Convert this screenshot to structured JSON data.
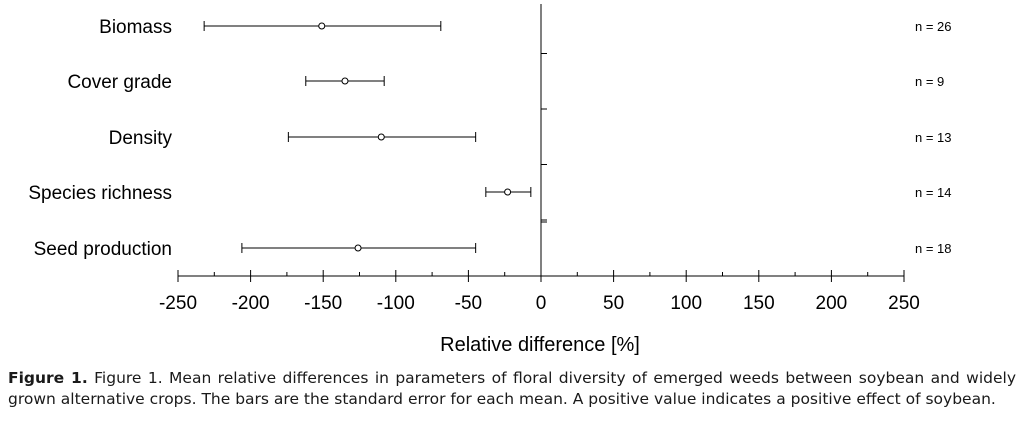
{
  "chart_data": {
    "type": "scatter",
    "subtype": "forest-plot-error-bars",
    "categories": [
      "Biomass",
      "Cover grade",
      "Density",
      "Species richness",
      "Seed production"
    ],
    "means": [
      -151,
      -135,
      -110,
      -23,
      -126
    ],
    "errors_low": [
      -232,
      -162,
      -174,
      -38,
      -206
    ],
    "errors_high": [
      -69,
      -108,
      -45,
      -7,
      -45
    ],
    "n_labels": [
      "n = 26",
      "n = 9",
      "n = 13",
      "n = 14",
      "n = 18"
    ],
    "xlabel": "Relative difference [%]",
    "xlim": [
      -250,
      250
    ],
    "xticks": [
      -250,
      -200,
      -150,
      -100,
      -50,
      0,
      50,
      100,
      150,
      200,
      250
    ],
    "xtick_labels": [
      "-250",
      "-200",
      "-150",
      "-100",
      "-50",
      "0",
      "50",
      "100",
      "150",
      "200",
      "250"
    ],
    "zero_line": true,
    "grid": false
  },
  "caption": {
    "label": "Figure 1.",
    "text": " Figure 1. Mean relative differences in parameters of floral diversity of emerged weeds between soybean and widely grown alternative crops. The bars are the standard error for each mean. A positive value indicates a positive effect of soybean."
  }
}
